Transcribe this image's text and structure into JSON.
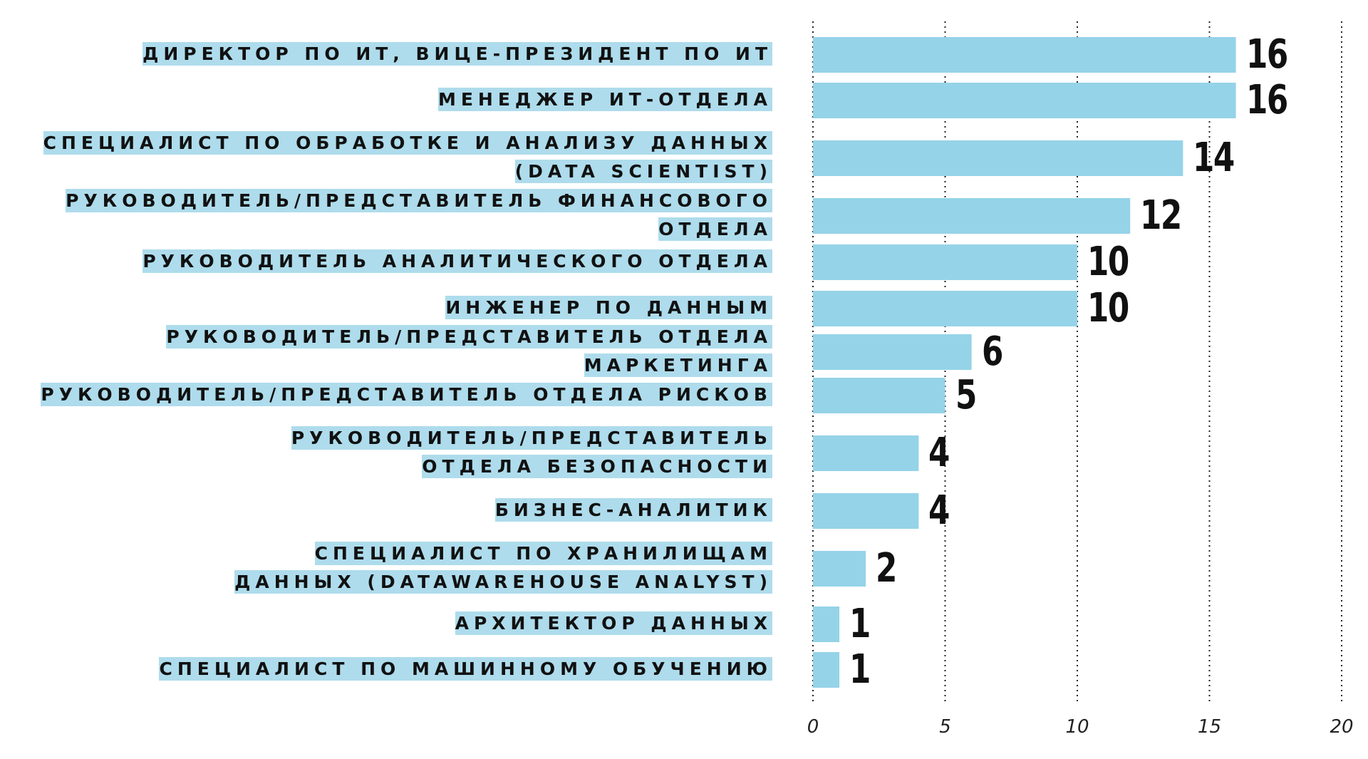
{
  "chart_data": {
    "type": "bar",
    "orientation": "horizontal",
    "categories": [
      "Директор по ИТ, вице-президент по ИТ",
      "Менеджер ИТ-отдела",
      "Специалист по обработке и анализу данных (Data Scientist)",
      "Руководитель/представитель финансового отдела",
      "Руководитель аналитического отдела",
      "Инженер по данным",
      "Руководитель/представитель отдела маркетинга",
      "Руководитель/представитель отдела рисков",
      "Руководитель/представитель отдела безопасности",
      "Бизнес-аналитик",
      "Специалист по хранилищам данных (Datawarehouse analyst)",
      "Архитектор данных",
      "Специалист по машинному обучению"
    ],
    "values": [
      16,
      16,
      14,
      12,
      10,
      10,
      6,
      5,
      4,
      4,
      2,
      1,
      1
    ],
    "xlim": [
      0,
      20
    ],
    "xticks": [
      0,
      5,
      10,
      15,
      20
    ],
    "grid": "vertical dotted",
    "title": "",
    "xlabel": "",
    "ylabel": "",
    "colors": {
      "bar": "#95d3e8",
      "label_highlight": "#aedcec",
      "text": "#111111",
      "grid": "#222222"
    }
  }
}
